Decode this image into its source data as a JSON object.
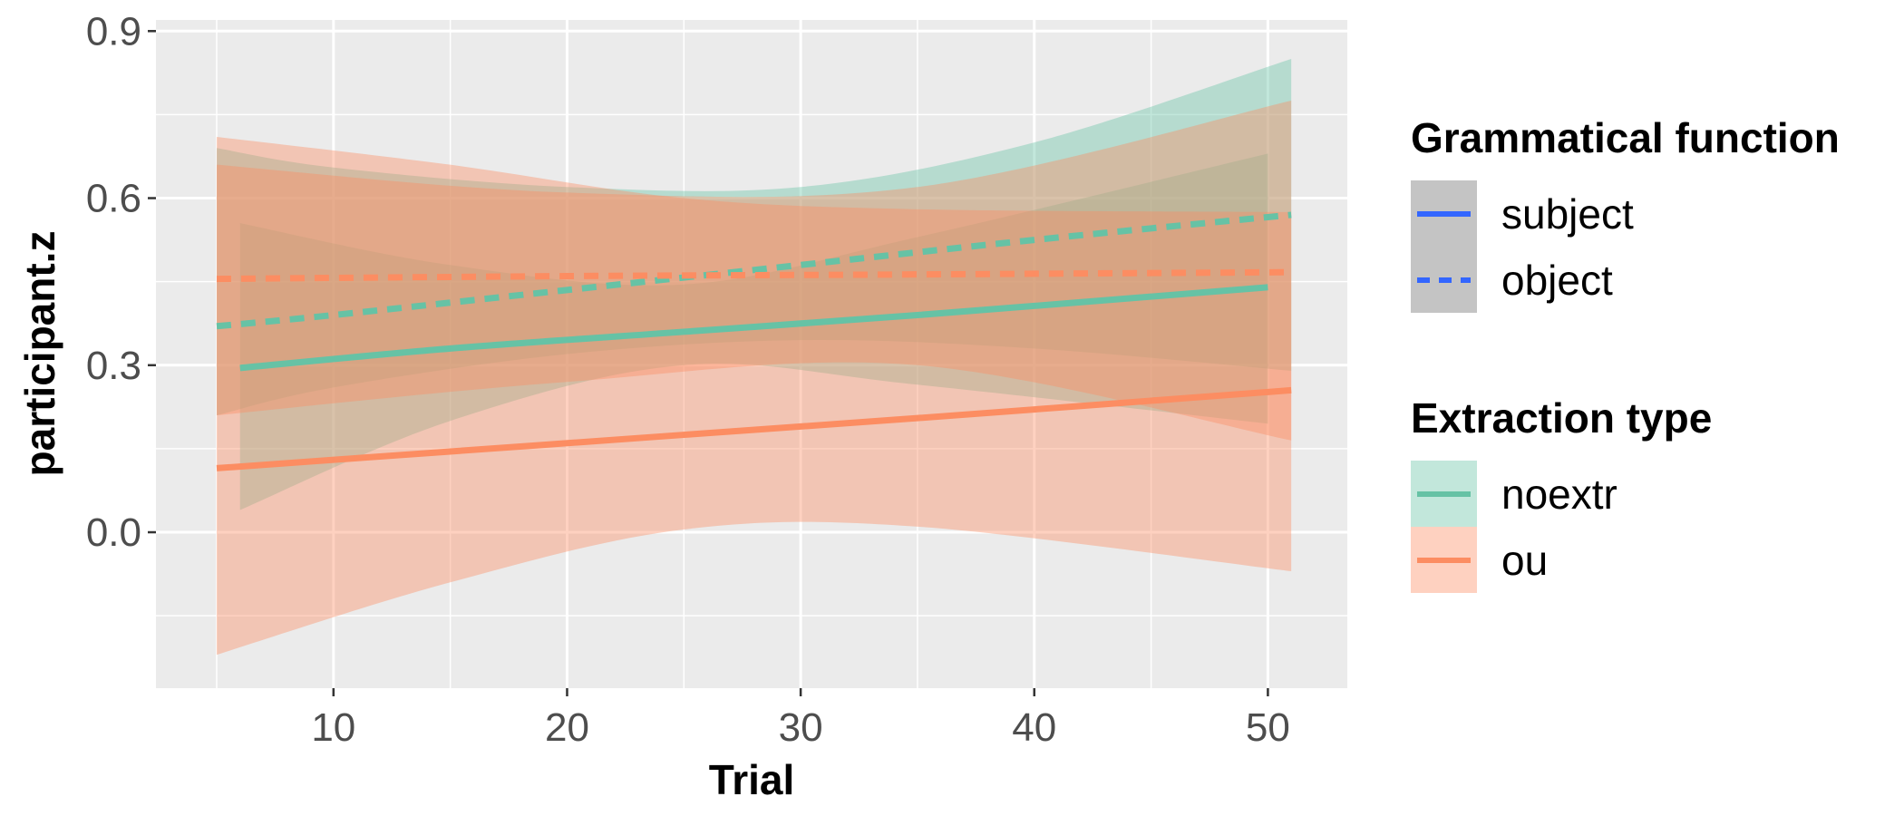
{
  "chart_data": {
    "type": "line",
    "xlabel": "Trial",
    "ylabel": "participant.z",
    "xlim": [
      2.4,
      53.4
    ],
    "ylim": [
      -0.28,
      0.92
    ],
    "x_ticks": [
      10,
      20,
      30,
      40,
      50
    ],
    "x_tick_labels": [
      "10",
      "20",
      "30",
      "40",
      "50"
    ],
    "y_ticks": [
      0.0,
      0.3,
      0.6,
      0.9
    ],
    "y_tick_labels": [
      "0.0",
      "0.3",
      "0.6",
      "0.9"
    ],
    "grid": true,
    "legend_position": "right",
    "legends": [
      {
        "title": "Grammatical function",
        "entries": [
          {
            "label": "subject",
            "linetype": "solid"
          },
          {
            "label": "object",
            "linetype": "dashed"
          }
        ]
      },
      {
        "title": "Extraction type",
        "entries": [
          {
            "label": "noextr",
            "color": "#66c2a5"
          },
          {
            "label": "ou",
            "color": "#fc8d62"
          }
        ]
      }
    ],
    "legend_line_color": "#3366ff",
    "series": [
      {
        "extraction": "noextr",
        "function": "subject",
        "color": "#66c2a5",
        "linetype": "solid",
        "x": [
          6,
          15,
          25,
          35,
          50
        ],
        "y": [
          0.295,
          0.33,
          0.36,
          0.39,
          0.44
        ],
        "lower": [
          0.04,
          0.2,
          0.3,
          0.265,
          0.195
        ],
        "upper": [
          0.555,
          0.48,
          0.445,
          0.53,
          0.68
        ]
      },
      {
        "extraction": "noextr",
        "function": "object",
        "color": "#66c2a5",
        "linetype": "dashed",
        "x": [
          5,
          10,
          20,
          30,
          40,
          51
        ],
        "y": [
          0.37,
          0.39,
          0.435,
          0.48,
          0.525,
          0.57
        ],
        "lower": [
          0.21,
          0.26,
          0.32,
          0.345,
          0.33,
          0.29
        ],
        "upper": [
          0.69,
          0.655,
          0.62,
          0.62,
          0.7,
          0.85
        ]
      },
      {
        "extraction": "ou",
        "function": "subject",
        "color": "#fc8d62",
        "linetype": "solid",
        "x": [
          5,
          15,
          25,
          35,
          51
        ],
        "y": [
          0.115,
          0.145,
          0.175,
          0.205,
          0.255
        ],
        "lower": [
          -0.22,
          -0.09,
          0.005,
          0.01,
          -0.07
        ],
        "upper": [
          0.71,
          0.66,
          0.6,
          0.58,
          0.575
        ]
      },
      {
        "extraction": "ou",
        "function": "object",
        "color": "#fc8d62",
        "linetype": "dashed",
        "x": [
          5,
          20,
          35,
          51
        ],
        "y": [
          0.455,
          0.46,
          0.463,
          0.467
        ],
        "lower": [
          0.21,
          0.27,
          0.3,
          0.165
        ],
        "upper": [
          0.66,
          0.61,
          0.62,
          0.775
        ]
      }
    ]
  }
}
